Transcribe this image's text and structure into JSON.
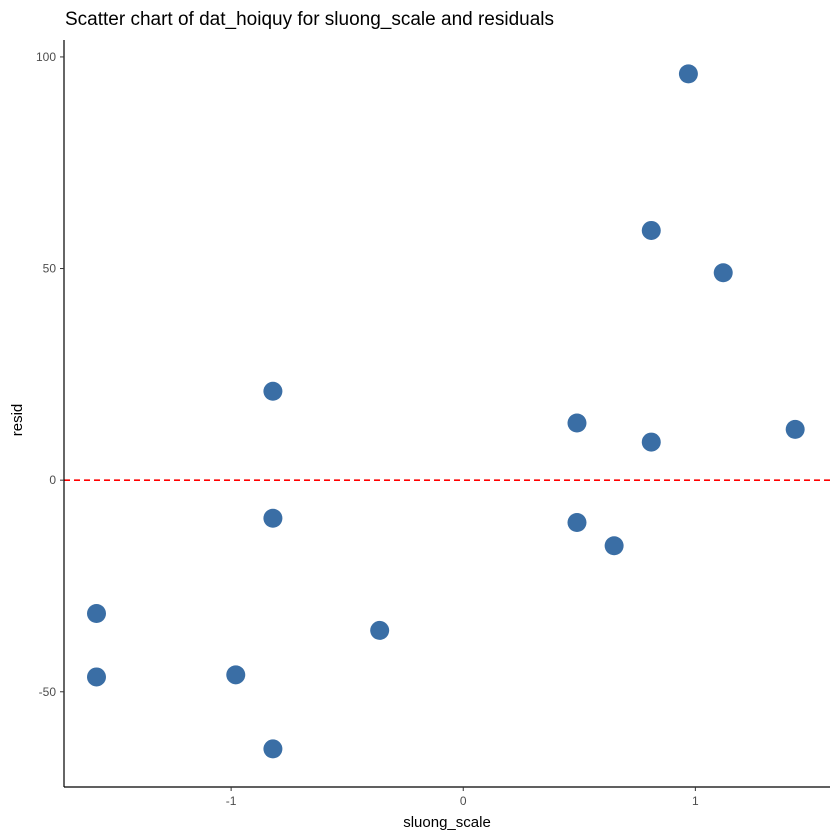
{
  "chart_data": {
    "type": "scatter",
    "title": "Scatter chart of dat_hoiquy for sluong_scale and residuals",
    "xlabel": "sluong_scale",
    "ylabel": "resid",
    "xlim": [
      -1.72,
      1.58
    ],
    "ylim": [
      -72.5,
      104
    ],
    "xticks": [
      -1,
      0,
      1
    ],
    "xtick_labels": [
      "-1",
      "0",
      "1"
    ],
    "yticks": [
      -50,
      0,
      50,
      100
    ],
    "ytick_labels": [
      "-50",
      "0",
      "50",
      "100"
    ],
    "grid": false,
    "legend": "none",
    "point_color": "#3a6ea5",
    "reference_line": {
      "y": 0,
      "color": "#ff0000",
      "style": "dashed"
    },
    "points": [
      {
        "x": -1.58,
        "y": -31.5
      },
      {
        "x": -1.58,
        "y": -46.5
      },
      {
        "x": -0.98,
        "y": -46.0
      },
      {
        "x": -0.82,
        "y": 21.0
      },
      {
        "x": -0.82,
        "y": -9.0
      },
      {
        "x": -0.82,
        "y": -63.5
      },
      {
        "x": -0.36,
        "y": -35.5
      },
      {
        "x": 0.49,
        "y": 13.5
      },
      {
        "x": 0.49,
        "y": -10.0
      },
      {
        "x": 0.65,
        "y": -15.5
      },
      {
        "x": 0.81,
        "y": 59.0
      },
      {
        "x": 0.81,
        "y": 9.0
      },
      {
        "x": 0.97,
        "y": 96.0
      },
      {
        "x": 1.12,
        "y": 49.0
      },
      {
        "x": 1.43,
        "y": 12.0
      }
    ]
  }
}
